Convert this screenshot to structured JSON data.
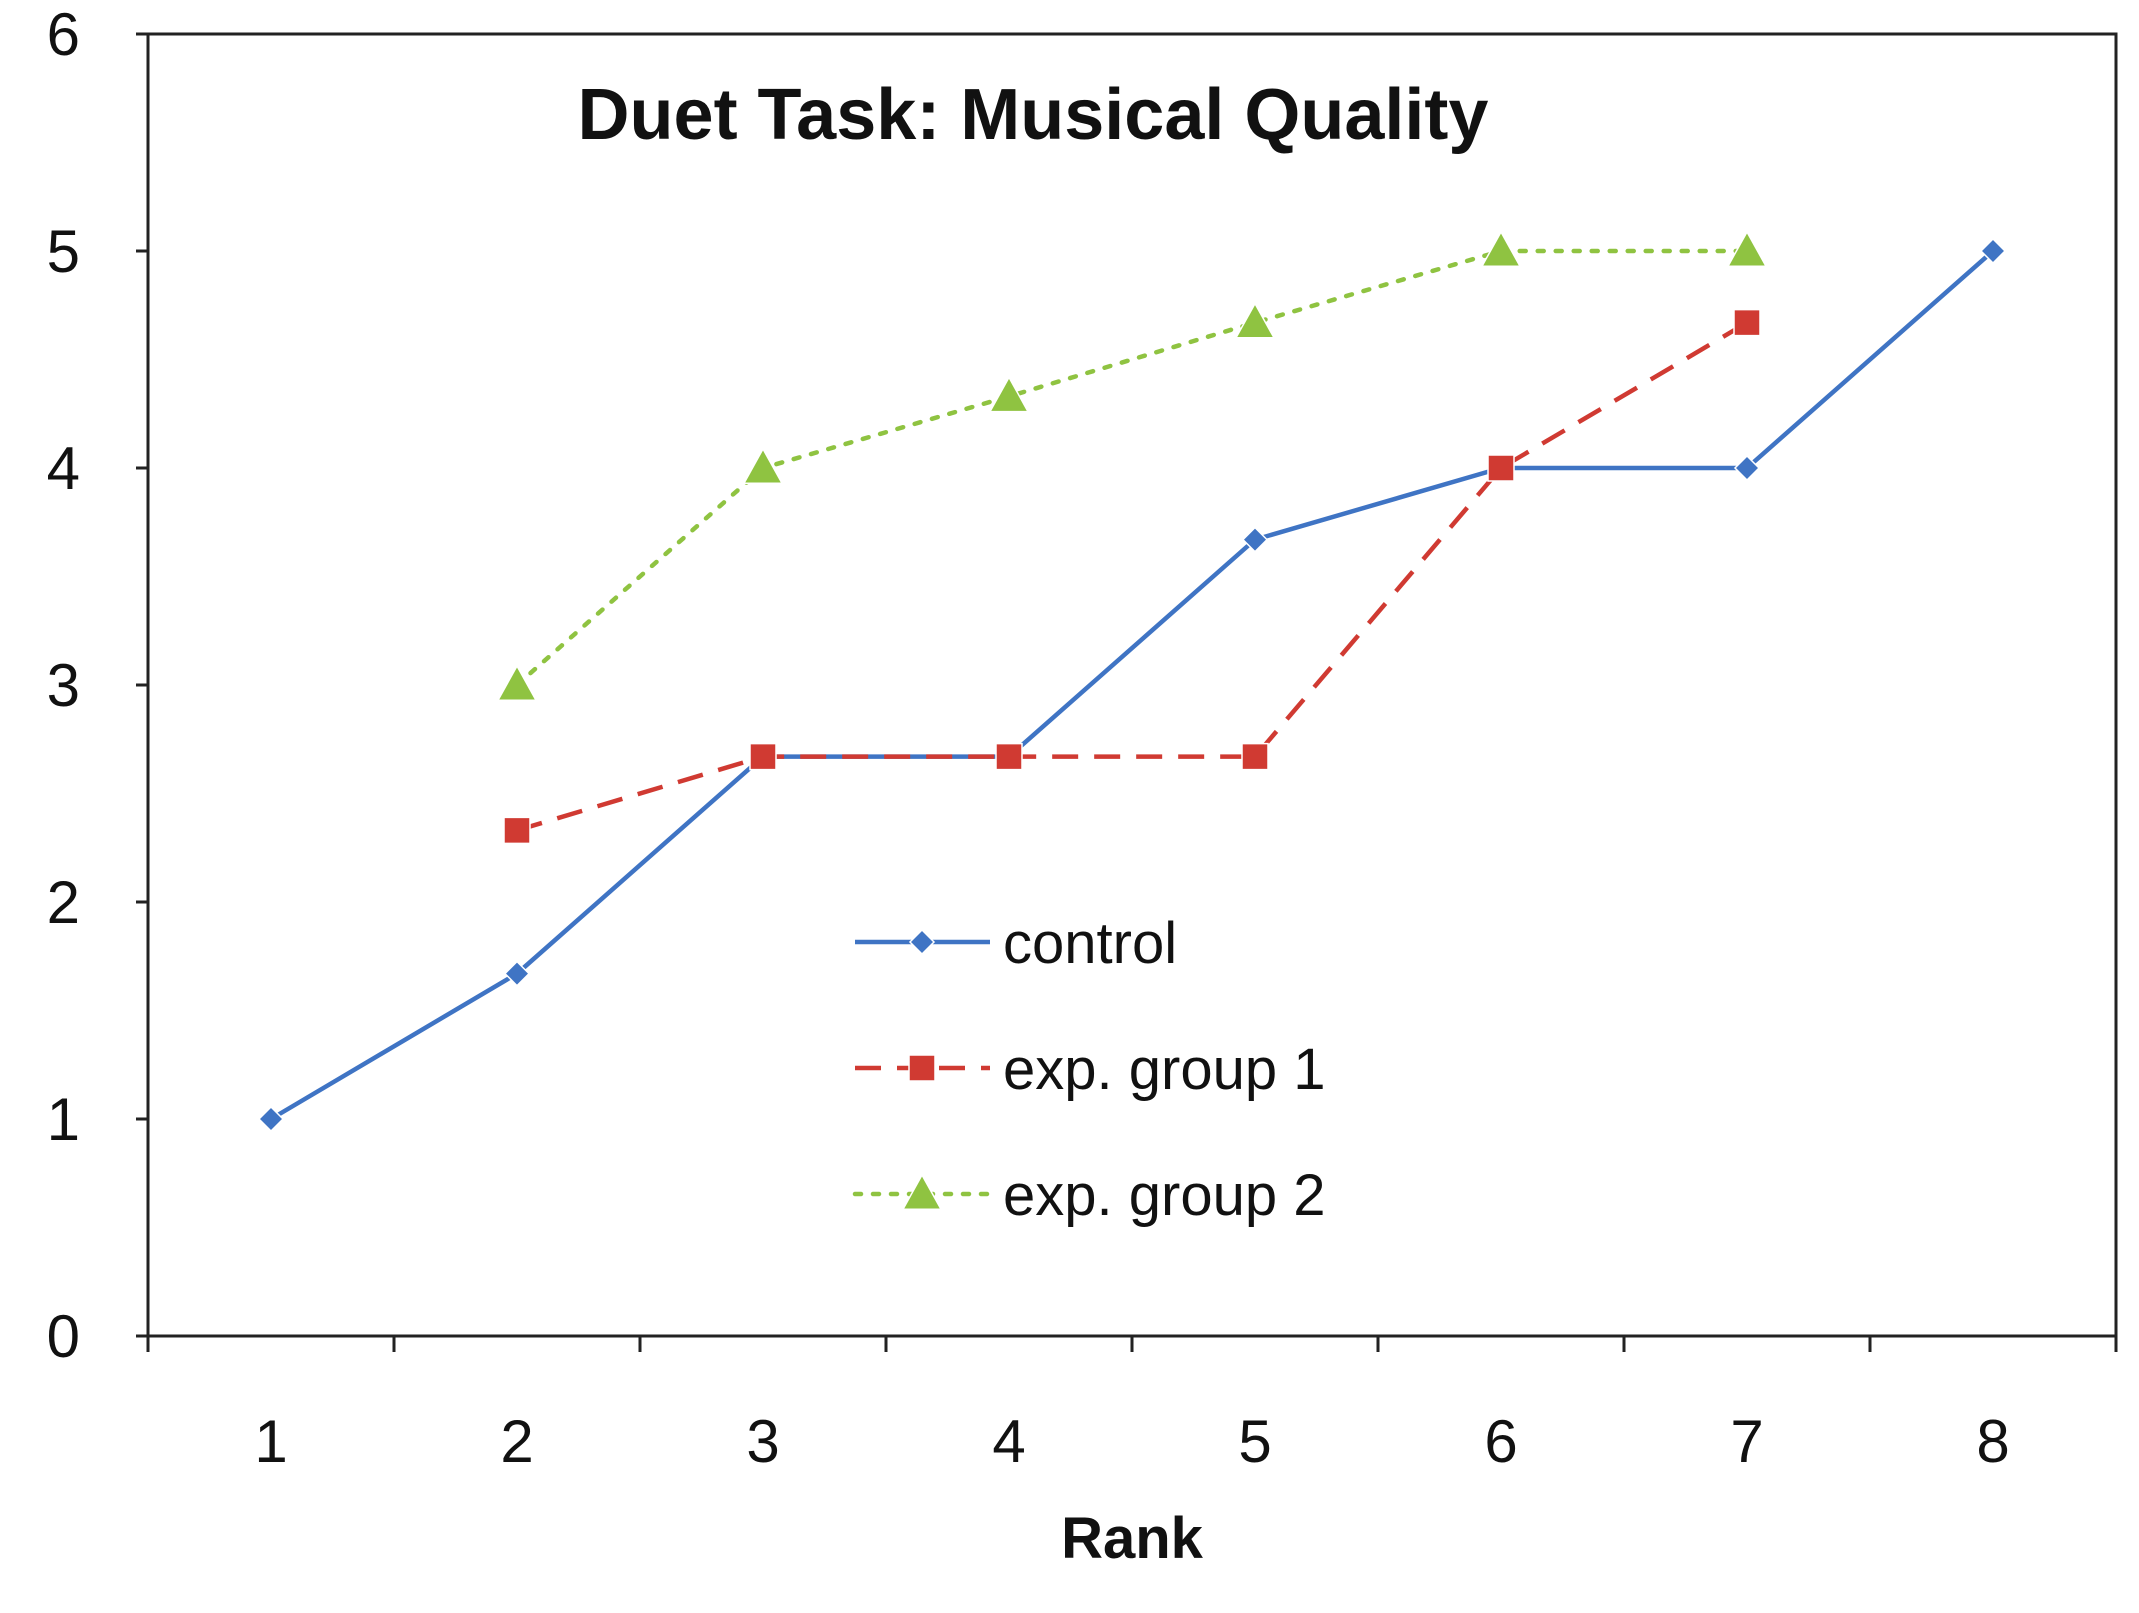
{
  "chart_data": {
    "type": "line",
    "title": "Duet Task: Musical Quality",
    "xlabel": "Rank",
    "ylabel": "",
    "categories": [
      "1",
      "2",
      "3",
      "4",
      "5",
      "6",
      "7",
      "8"
    ],
    "ylim": [
      0,
      6
    ],
    "yticks": [
      "0",
      "1",
      "2",
      "3",
      "4",
      "5",
      "6"
    ],
    "grid": false,
    "legend_position": "center",
    "series": [
      {
        "name": "control",
        "color": "#3f74c4",
        "line_style": "solid",
        "marker": "diamond",
        "values": [
          1,
          1.67,
          2.67,
          2.67,
          3.67,
          4,
          4,
          5
        ]
      },
      {
        "name": "exp. group 1",
        "color": "#d03a32",
        "line_style": "dashed",
        "marker": "square",
        "values": [
          null,
          2.33,
          2.67,
          2.67,
          2.67,
          4,
          4.67,
          null
        ]
      },
      {
        "name": "exp. group 2",
        "color": "#8fc341",
        "line_style": "dotted",
        "marker": "triangle",
        "values": [
          null,
          3,
          4,
          4.33,
          4.67,
          5,
          5,
          null
        ]
      }
    ]
  }
}
